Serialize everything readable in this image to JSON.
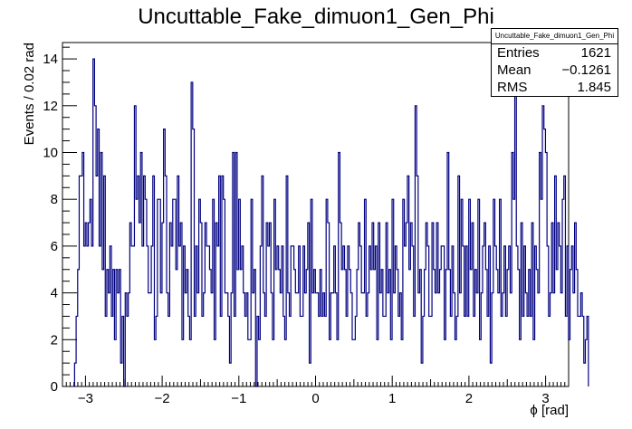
{
  "chart_data": {
    "type": "histogram",
    "title": "Uncuttable_Fake_dimuon1_Gen_Phi",
    "xlabel": "ϕ [rad]",
    "ylabel": "Events / 0.02 rad",
    "xlim": [
      -3.3,
      3.3
    ],
    "ylim": [
      0,
      14.7
    ],
    "bin_start": -3.142,
    "bin_width": 0.02,
    "x_ticks": [
      -3,
      -2,
      -1,
      0,
      1,
      2,
      3
    ],
    "x_tick_labels": [
      "−3",
      "−2",
      "−1",
      "0",
      "1",
      "2",
      "3"
    ],
    "y_ticks": [
      0,
      2,
      4,
      6,
      8,
      10,
      12,
      14
    ],
    "y_tick_labels": [
      "0",
      "2",
      "4",
      "6",
      "8",
      "10",
      "12",
      "14"
    ],
    "line_color": "#000080",
    "values": [
      1,
      3,
      5,
      9,
      9,
      10,
      6,
      7,
      6,
      7,
      8,
      6,
      14,
      12,
      9,
      11,
      6,
      10,
      5,
      9,
      3,
      5,
      4,
      6,
      3,
      5,
      2,
      5,
      4,
      5,
      1,
      3,
      0,
      4,
      3,
      4,
      7,
      6,
      6,
      12,
      8,
      9,
      7,
      10,
      6,
      9,
      8,
      6,
      4,
      4,
      6,
      9,
      2,
      3,
      8,
      8,
      4,
      7,
      11,
      9,
      4,
      3,
      7,
      6,
      8,
      8,
      5,
      9,
      6,
      7,
      2,
      6,
      4,
      5,
      3,
      2,
      13,
      11,
      3,
      6,
      4,
      8,
      7,
      3,
      4,
      7,
      6,
      6,
      5,
      4,
      8,
      2,
      7,
      6,
      9,
      3,
      9,
      8,
      4,
      4,
      3,
      1,
      4,
      10,
      3,
      10,
      5,
      8,
      5,
      6,
      4,
      3,
      4,
      2,
      2,
      8,
      4,
      5,
      0,
      3,
      2,
      6,
      9,
      4,
      3,
      7,
      6,
      7,
      4,
      2,
      8,
      5,
      6,
      5,
      4,
      6,
      3,
      2,
      9,
      4,
      3,
      6,
      6,
      5,
      4,
      4,
      6,
      3,
      3,
      6,
      4,
      5,
      7,
      1,
      8,
      4,
      5,
      4,
      4,
      3,
      5,
      3,
      4,
      3,
      8,
      7,
      2,
      4,
      4,
      6,
      4,
      2,
      10,
      7,
      5,
      6,
      5,
      3,
      6,
      5,
      4,
      2,
      2,
      3,
      5,
      7,
      6,
      4,
      4,
      8,
      3,
      4,
      6,
      5,
      7,
      5,
      6,
      2,
      7,
      4,
      5,
      3,
      3,
      7,
      4,
      5,
      2,
      8,
      4,
      6,
      5,
      3,
      4,
      2,
      8,
      6,
      7,
      9,
      5,
      7,
      6,
      3,
      12,
      9,
      4,
      5,
      1,
      3,
      5,
      7,
      6,
      3,
      3,
      7,
      5,
      4,
      7,
      4,
      5,
      6,
      6,
      2,
      5,
      10,
      5,
      3,
      6,
      4,
      2,
      3,
      9,
      4,
      8,
      6,
      3,
      6,
      3,
      8,
      5,
      7,
      3,
      5,
      4,
      8,
      2,
      4,
      6,
      7,
      5,
      3,
      6,
      1,
      4,
      8,
      6,
      5,
      4,
      8,
      3,
      4,
      6,
      3,
      5,
      6,
      4,
      10,
      8,
      13,
      6,
      5,
      2,
      7,
      3,
      6,
      4,
      3,
      5,
      3,
      7,
      2,
      6,
      5,
      4,
      10,
      8,
      12,
      11,
      10,
      6,
      3,
      4,
      7,
      4,
      9,
      5,
      7,
      6,
      4,
      8,
      9,
      3,
      6,
      2,
      5,
      6,
      4,
      7,
      5,
      3,
      3,
      4,
      3,
      1,
      2,
      3
    ]
  },
  "stats": {
    "title": "Uncuttable_Fake_dimuon1_Gen_Phi",
    "entries_label": "Entries",
    "entries_value": "1621",
    "mean_label": "Mean",
    "mean_value": "−0.1261",
    "rms_label": "RMS",
    "rms_value": "1.845"
  }
}
